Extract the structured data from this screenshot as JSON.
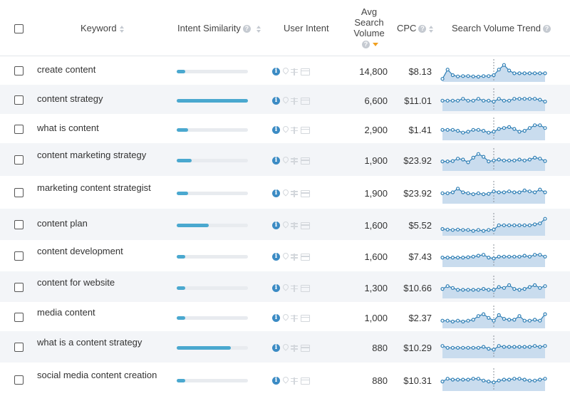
{
  "header": {
    "keyword": "Keyword",
    "intent_similarity": "Intent Similarity",
    "user_intent": "User Intent",
    "volume_line1": "Avg",
    "volume_line2": "Search",
    "volume_line3": "Volume",
    "cpc": "CPC",
    "trend": "Search Volume Trend",
    "help_glyph": "?",
    "info_glyph": "i"
  },
  "colors": {
    "bar": "#4aa8cf",
    "trend_line": "#2f7fb5",
    "trend_fill": "#c9dcee",
    "sort_active": "#f0a020"
  },
  "rows": [
    {
      "keyword": "create content",
      "similarity": 0.12,
      "volume": "14,800",
      "cpc": "$8.13",
      "trend": [
        0.05,
        0.55,
        0.25,
        0.18,
        0.2,
        0.2,
        0.18,
        0.17,
        0.2,
        0.2,
        0.25,
        0.55,
        0.8,
        0.5,
        0.35,
        0.35,
        0.35,
        0.35,
        0.35,
        0.35,
        0.35
      ]
    },
    {
      "keyword": "content strategy",
      "similarity": 1.0,
      "volume": "6,600",
      "cpc": "$11.01",
      "trend": [
        0.45,
        0.45,
        0.45,
        0.45,
        0.55,
        0.45,
        0.45,
        0.55,
        0.45,
        0.45,
        0.4,
        0.55,
        0.45,
        0.45,
        0.55,
        0.55,
        0.55,
        0.55,
        0.55,
        0.5,
        0.4
      ]
    },
    {
      "keyword": "what is content",
      "similarity": 0.16,
      "volume": "2,900",
      "cpc": "$1.41",
      "trend": [
        0.45,
        0.45,
        0.45,
        0.4,
        0.3,
        0.35,
        0.45,
        0.45,
        0.4,
        0.3,
        0.35,
        0.5,
        0.55,
        0.6,
        0.5,
        0.35,
        0.4,
        0.55,
        0.7,
        0.7,
        0.55
      ]
    },
    {
      "keyword": "content marketing strategy",
      "similarity": 0.21,
      "volume": "1,900",
      "cpc": "$23.92",
      "trend": [
        0.4,
        0.4,
        0.42,
        0.55,
        0.5,
        0.35,
        0.6,
        0.8,
        0.65,
        0.4,
        0.45,
        0.5,
        0.45,
        0.45,
        0.45,
        0.5,
        0.45,
        0.5,
        0.6,
        0.55,
        0.42
      ]
    },
    {
      "keyword": "marketing content strategist",
      "similarity": 0.16,
      "volume": "1,900",
      "cpc": "$23.92",
      "trend": [
        0.45,
        0.45,
        0.5,
        0.7,
        0.5,
        0.45,
        0.4,
        0.45,
        0.4,
        0.42,
        0.55,
        0.5,
        0.5,
        0.55,
        0.5,
        0.5,
        0.6,
        0.55,
        0.5,
        0.65,
        0.5
      ]
    },
    {
      "keyword": "content plan",
      "similarity": 0.45,
      "volume": "1,600",
      "cpc": "$5.52",
      "trend": [
        0.25,
        0.22,
        0.2,
        0.22,
        0.2,
        0.2,
        0.15,
        0.2,
        0.15,
        0.2,
        0.22,
        0.45,
        0.45,
        0.45,
        0.45,
        0.45,
        0.45,
        0.45,
        0.5,
        0.55,
        0.8
      ]
    },
    {
      "keyword": "content development",
      "similarity": 0.12,
      "volume": "1,600",
      "cpc": "$7.43",
      "trend": [
        0.4,
        0.4,
        0.4,
        0.4,
        0.4,
        0.42,
        0.45,
        0.5,
        0.55,
        0.4,
        0.35,
        0.45,
        0.45,
        0.45,
        0.45,
        0.45,
        0.5,
        0.45,
        0.55,
        0.55,
        0.45
      ]
    },
    {
      "keyword": "content for website",
      "similarity": 0.12,
      "volume": "1,300",
      "cpc": "$10.66",
      "trend": [
        0.4,
        0.55,
        0.45,
        0.35,
        0.35,
        0.35,
        0.35,
        0.35,
        0.4,
        0.35,
        0.35,
        0.5,
        0.45,
        0.6,
        0.4,
        0.35,
        0.4,
        0.5,
        0.6,
        0.45,
        0.55
      ]
    },
    {
      "keyword": "media content",
      "similarity": 0.12,
      "volume": "1,000",
      "cpc": "$2.37",
      "trend": [
        0.3,
        0.3,
        0.25,
        0.3,
        0.25,
        0.3,
        0.35,
        0.55,
        0.65,
        0.45,
        0.3,
        0.6,
        0.4,
        0.35,
        0.35,
        0.55,
        0.3,
        0.3,
        0.35,
        0.3,
        0.65
      ]
    },
    {
      "keyword": "what is a content strategy",
      "similarity": 0.76,
      "volume": "880",
      "cpc": "$10.29",
      "trend": [
        0.55,
        0.45,
        0.45,
        0.45,
        0.45,
        0.45,
        0.45,
        0.45,
        0.5,
        0.4,
        0.35,
        0.55,
        0.5,
        0.5,
        0.5,
        0.5,
        0.5,
        0.5,
        0.55,
        0.5,
        0.55
      ]
    },
    {
      "keyword": "social media content creation",
      "similarity": 0.12,
      "volume": "880",
      "cpc": "$10.31",
      "trend": [
        0.4,
        0.55,
        0.5,
        0.5,
        0.5,
        0.5,
        0.55,
        0.55,
        0.45,
        0.4,
        0.35,
        0.45,
        0.5,
        0.5,
        0.55,
        0.55,
        0.5,
        0.45,
        0.45,
        0.5,
        0.55
      ]
    }
  ]
}
